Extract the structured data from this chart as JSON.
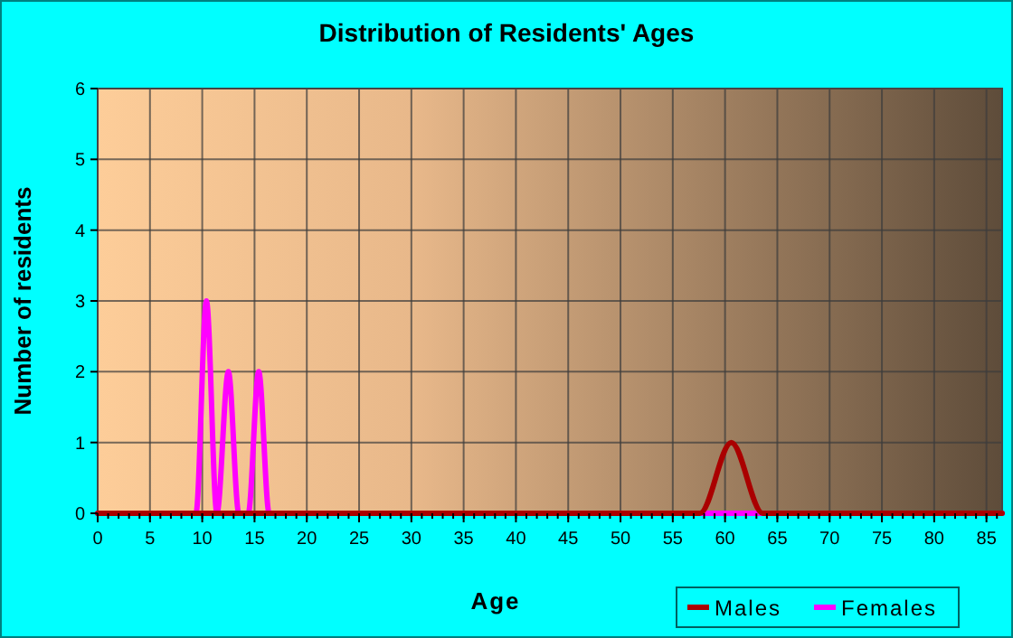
{
  "chart_data": {
    "type": "line",
    "title": "Distribution of Residents' Ages",
    "xlabel": "Age",
    "ylabel": "Number of residents",
    "xlim": [
      0,
      86.5
    ],
    "xticks": [
      0,
      5,
      10,
      15,
      20,
      25,
      30,
      35,
      40,
      45,
      50,
      55,
      60,
      65,
      70,
      75,
      80,
      85
    ],
    "ylim": [
      0,
      6
    ],
    "yticks": [
      0,
      1,
      2,
      3,
      4,
      5,
      6
    ],
    "grid": true,
    "legend": "bottom right",
    "line_style": "solid",
    "series": [
      {
        "name": "Males",
        "color": "#aa0000",
        "x": [
          0,
          57.6,
          60.6,
          63.6,
          86.5
        ],
        "values": [
          0,
          0,
          1,
          0,
          0
        ]
      },
      {
        "name": "Females",
        "color": "#ff00ff",
        "x": [
          0,
          9.4,
          10.4,
          11.4,
          12.5,
          13.5,
          14.4,
          15.4,
          16.4,
          86.5
        ],
        "values": [
          0,
          0,
          3,
          0,
          2,
          0,
          0,
          2,
          0,
          0
        ]
      }
    ]
  }
}
